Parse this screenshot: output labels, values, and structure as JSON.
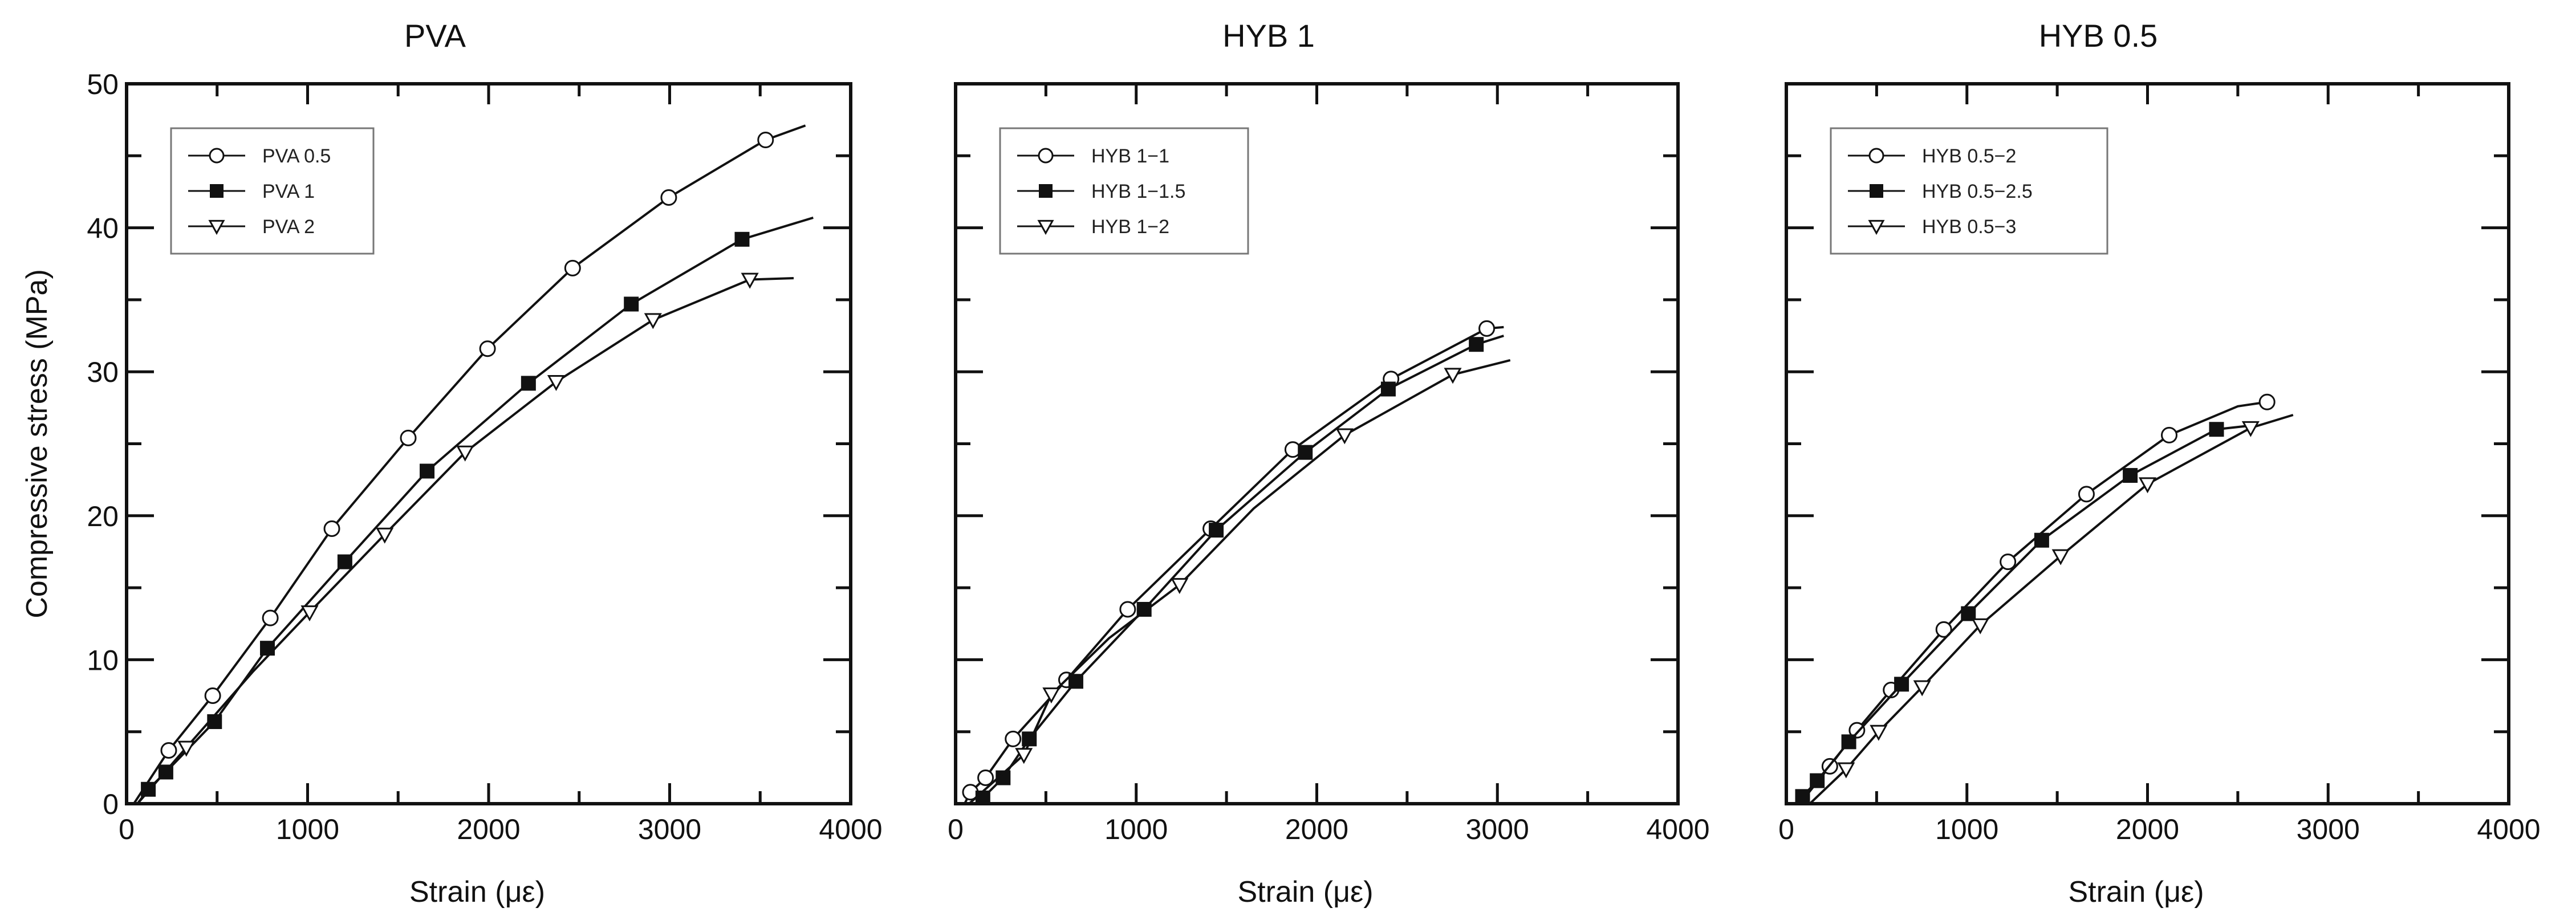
{
  "chart_data": [
    {
      "type": "line",
      "title": "PVA",
      "xlabel": "Strain (με)",
      "ylabel": "Compressive stress (MPa)",
      "xlim": [
        0,
        4000
      ],
      "ylim": [
        0,
        50
      ],
      "xticks": [
        "0",
        "1000",
        "2000",
        "3000",
        "4000"
      ],
      "yticks": [
        "0",
        "10",
        "20",
        "30",
        "40",
        "50"
      ],
      "show_ytick_labels": true,
      "legend_position": "top-left",
      "series": [
        {
          "name": "PVA 0.5",
          "marker": "circle",
          "markers": [
            [
              233,
              3.7
            ],
            [
              476,
              7.5
            ],
            [
              794,
              12.9
            ],
            [
              1134,
              19.1
            ],
            [
              1556,
              25.4
            ],
            [
              1994,
              31.6
            ],
            [
              2464,
              37.2
            ],
            [
              2995,
              42.1
            ],
            [
              3530,
              46.1
            ]
          ],
          "curve": [
            [
              40,
              0
            ],
            [
              233,
              3.7
            ],
            [
              476,
              7.5
            ],
            [
              794,
              12.9
            ],
            [
              1134,
              19.1
            ],
            [
              1556,
              25.4
            ],
            [
              1994,
              31.6
            ],
            [
              2464,
              37.2
            ],
            [
              2995,
              42.1
            ],
            [
              3530,
              46.1
            ],
            [
              3750,
              47.1
            ]
          ]
        },
        {
          "name": "PVA 1",
          "marker": "square",
          "markers": [
            [
              120,
              1.0
            ],
            [
              217,
              2.2
            ],
            [
              486,
              5.7
            ],
            [
              778,
              10.8
            ],
            [
              1206,
              16.8
            ],
            [
              1660,
              23.1
            ],
            [
              2220,
              29.2
            ],
            [
              2788,
              34.7
            ],
            [
              3400,
              39.2
            ]
          ],
          "curve": [
            [
              60,
              0
            ],
            [
              120,
              1.0
            ],
            [
              217,
              2.2
            ],
            [
              486,
              5.7
            ],
            [
              778,
              10.8
            ],
            [
              1206,
              16.8
            ],
            [
              1660,
              23.1
            ],
            [
              2220,
              29.2
            ],
            [
              2788,
              34.7
            ],
            [
              3400,
              39.2
            ],
            [
              3793,
              40.7
            ]
          ]
        },
        {
          "name": "PVA 2",
          "marker": "triangle",
          "markers": [
            [
              330,
              3.9
            ],
            [
              1011,
              13.3
            ],
            [
              1426,
              18.7
            ],
            [
              1870,
              24.4
            ],
            [
              2373,
              29.3
            ],
            [
              2908,
              33.6
            ],
            [
              3443,
              36.4
            ]
          ],
          "curve": [
            [
              60,
              0
            ],
            [
              330,
              3.9
            ],
            [
              700,
              9.2
            ],
            [
              1011,
              13.3
            ],
            [
              1426,
              18.7
            ],
            [
              1870,
              24.4
            ],
            [
              2373,
              29.3
            ],
            [
              2908,
              33.6
            ],
            [
              3443,
              36.4
            ],
            [
              3685,
              36.5
            ]
          ]
        }
      ]
    },
    {
      "type": "line",
      "title": "HYB 1",
      "xlabel": "Strain (με)",
      "ylabel": "",
      "xlim": [
        0,
        4000
      ],
      "ylim": [
        0,
        50
      ],
      "xticks": [
        "0",
        "1000",
        "2000",
        "3000",
        "4000"
      ],
      "yticks": [
        "0",
        "10",
        "20",
        "30",
        "40",
        "50"
      ],
      "show_ytick_labels": false,
      "legend_position": "top-left",
      "series": [
        {
          "name": "HYB 1−1",
          "marker": "circle",
          "markers": [
            [
              82,
              0.8
            ],
            [
              166,
              1.8
            ],
            [
              318,
              4.5
            ],
            [
              614,
              8.6
            ],
            [
              953,
              13.5
            ],
            [
              1413,
              19.1
            ],
            [
              1867,
              24.6
            ],
            [
              2411,
              29.5
            ],
            [
              2941,
              33.0
            ]
          ],
          "curve": [
            [
              50,
              0
            ],
            [
              82,
              0.8
            ],
            [
              166,
              1.8
            ],
            [
              318,
              4.5
            ],
            [
              614,
              8.6
            ],
            [
              953,
              13.5
            ],
            [
              1413,
              19.1
            ],
            [
              1867,
              24.6
            ],
            [
              2411,
              29.5
            ],
            [
              2941,
              33.0
            ],
            [
              3035,
              33.1
            ]
          ]
        },
        {
          "name": "HYB 1−1.5",
          "marker": "square",
          "markers": [
            [
              151,
              0.4
            ],
            [
              263,
              1.8
            ],
            [
              408,
              4.5
            ],
            [
              666,
              8.5
            ],
            [
              1044,
              13.5
            ],
            [
              1443,
              19.0
            ],
            [
              1936,
              24.4
            ],
            [
              2396,
              28.8
            ],
            [
              2883,
              31.9
            ]
          ],
          "curve": [
            [
              110,
              0
            ],
            [
              151,
              0.4
            ],
            [
              263,
              1.8
            ],
            [
              408,
              4.5
            ],
            [
              666,
              8.5
            ],
            [
              1044,
              13.5
            ],
            [
              1443,
              19.0
            ],
            [
              1936,
              24.4
            ],
            [
              2396,
              28.8
            ],
            [
              2883,
              31.9
            ],
            [
              3035,
              32.5
            ]
          ]
        },
        {
          "name": "HYB 1−2",
          "marker": "triangle",
          "markers": [
            [
              378,
              3.4
            ],
            [
              530,
              7.6
            ],
            [
              1240,
              15.2
            ],
            [
              2154,
              25.6
            ],
            [
              2753,
              29.8
            ]
          ],
          "curve": [
            [
              75,
              0
            ],
            [
              378,
              3.4
            ],
            [
              530,
              7.6
            ],
            [
              850,
              11.5
            ],
            [
              1240,
              15.2
            ],
            [
              1650,
              20.5
            ],
            [
              2154,
              25.6
            ],
            [
              2753,
              29.8
            ],
            [
              3071,
              30.8
            ]
          ]
        }
      ]
    },
    {
      "type": "line",
      "title": "HYB 0.5",
      "xlabel": "Strain (με)",
      "ylabel": "",
      "xlim": [
        0,
        4000
      ],
      "ylim": [
        0,
        50
      ],
      "xticks": [
        "0",
        "1000",
        "2000",
        "3000",
        "4000"
      ],
      "yticks": [
        "0",
        "10",
        "20",
        "30",
        "40",
        "50"
      ],
      "show_ytick_labels": false,
      "legend_position": "top-left",
      "series": [
        {
          "name": "HYB 0.5−2",
          "marker": "circle",
          "markers": [
            [
              241,
              2.6
            ],
            [
              391,
              5.1
            ],
            [
              580,
              7.9
            ],
            [
              872,
              12.1
            ],
            [
              1227,
              16.8
            ],
            [
              1662,
              21.5
            ],
            [
              2120,
              25.6
            ],
            [
              2662,
              27.9
            ]
          ],
          "curve": [
            [
              75,
              0
            ],
            [
              241,
              2.6
            ],
            [
              391,
              5.1
            ],
            [
              580,
              7.9
            ],
            [
              872,
              12.1
            ],
            [
              1227,
              16.8
            ],
            [
              1662,
              21.5
            ],
            [
              2120,
              25.6
            ],
            [
              2500,
              27.6
            ],
            [
              2662,
              27.9
            ]
          ]
        },
        {
          "name": "HYB 0.5−2.5",
          "marker": "square",
          "markers": [
            [
              90,
              0.5
            ],
            [
              171,
              1.6
            ],
            [
              346,
              4.3
            ],
            [
              638,
              8.3
            ],
            [
              1008,
              13.2
            ],
            [
              1414,
              18.3
            ],
            [
              1904,
              22.8
            ],
            [
              2382,
              26.0
            ]
          ],
          "curve": [
            [
              60,
              0
            ],
            [
              90,
              0.5
            ],
            [
              171,
              1.6
            ],
            [
              346,
              4.3
            ],
            [
              638,
              8.3
            ],
            [
              1008,
              13.2
            ],
            [
              1414,
              18.3
            ],
            [
              1904,
              22.8
            ],
            [
              2382,
              26.0
            ],
            [
              2600,
              26.3
            ]
          ]
        },
        {
          "name": "HYB 0.5−3",
          "marker": "triangle",
          "markers": [
            [
              331,
              2.4
            ],
            [
              511,
              5.0
            ],
            [
              752,
              8.1
            ],
            [
              1074,
              12.4
            ],
            [
              1519,
              17.2
            ],
            [
              2000,
              22.2
            ],
            [
              2571,
              26.1
            ]
          ],
          "curve": [
            [
              130,
              0
            ],
            [
              331,
              2.4
            ],
            [
              511,
              5.0
            ],
            [
              752,
              8.1
            ],
            [
              1074,
              12.4
            ],
            [
              1519,
              17.2
            ],
            [
              2000,
              22.2
            ],
            [
              2571,
              26.1
            ],
            [
              2806,
              27.0
            ]
          ]
        }
      ]
    }
  ]
}
